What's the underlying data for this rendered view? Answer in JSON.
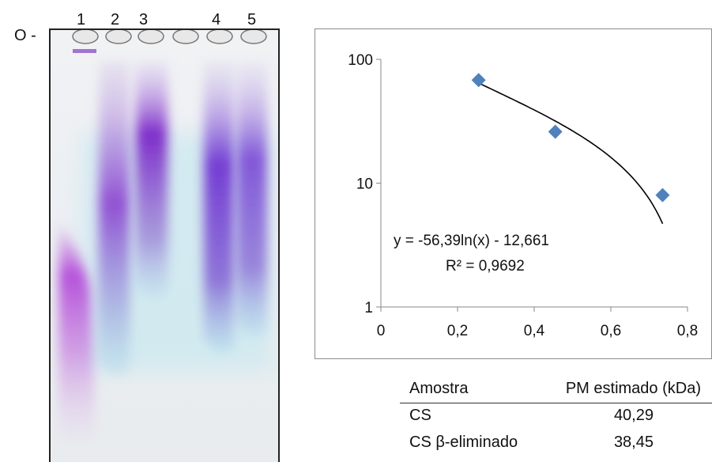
{
  "gel": {
    "origin_label": "O -",
    "lanes": [
      "1",
      "2",
      "3",
      "4",
      "5"
    ]
  },
  "chart_data": {
    "type": "scatter",
    "x": [
      0.255,
      0.455,
      0.735
    ],
    "y": [
      68,
      26,
      8
    ],
    "xlim": [
      0,
      0.8
    ],
    "ylim": [
      1,
      100
    ],
    "yscale": "log",
    "xticks": [
      "0",
      "0,2",
      "0,4",
      "0,6",
      "0,8"
    ],
    "yticks": [
      "1",
      "10",
      "100"
    ],
    "marker": "diamond",
    "marker_color": "#4f81bd",
    "trendline": {
      "type": "logarithmic",
      "a": -56.39,
      "b": -12.661,
      "x_range": [
        0.255,
        0.735
      ]
    },
    "equation": "y = -56,39ln(x) - 12,661",
    "r_squared": "R² = 0,9692"
  },
  "table": {
    "headers": [
      "Amostra",
      "PM estimado (kDa)"
    ],
    "rows": [
      [
        "CS",
        "40,29"
      ],
      [
        "CS β-eliminado",
        "38,45"
      ]
    ]
  }
}
